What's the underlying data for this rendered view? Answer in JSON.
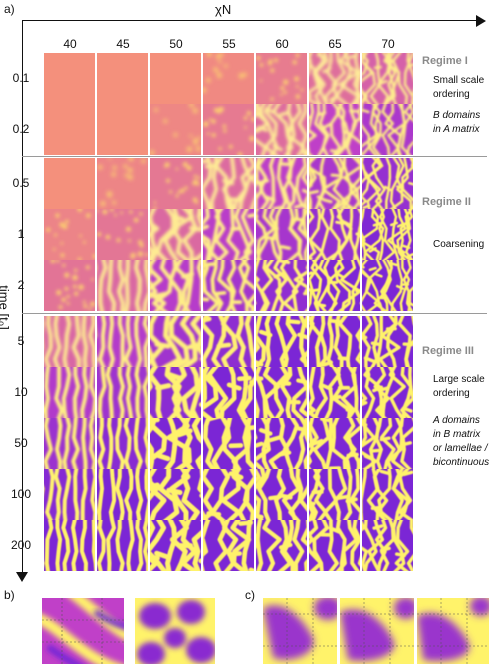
{
  "panel_a_label": "a)",
  "panel_b_label": "b)",
  "panel_c_label": "c)",
  "x_axis_label": "χN",
  "y_axis_label": "time [t₀]",
  "columns": [
    "40",
    "45",
    "50",
    "55",
    "60",
    "65",
    "70"
  ],
  "rows": [
    "0.1",
    "0.2",
    "0.5",
    "1",
    "2",
    "5",
    "10",
    "50",
    "100",
    "200"
  ],
  "regimes": [
    {
      "title": "Regime I",
      "notes": [
        "Small scale",
        "ordering"
      ],
      "notes_italic": [
        "B domains",
        "in A matrix"
      ]
    },
    {
      "title": "Regime II",
      "notes": [
        "Coarsening"
      ],
      "notes_italic": []
    },
    {
      "title": "Regime III",
      "notes": [
        "Large scale",
        "ordering"
      ],
      "notes_italic": [
        "A domains",
        "in B matrix",
        "or lamellae /",
        "bicontinuous"
      ]
    }
  ],
  "colors": {
    "salmon": "#f4907c",
    "yellow": "#fff36a",
    "magenta": "#c040c8",
    "purple": "#6a20d8",
    "light": "#fde6b0"
  }
}
